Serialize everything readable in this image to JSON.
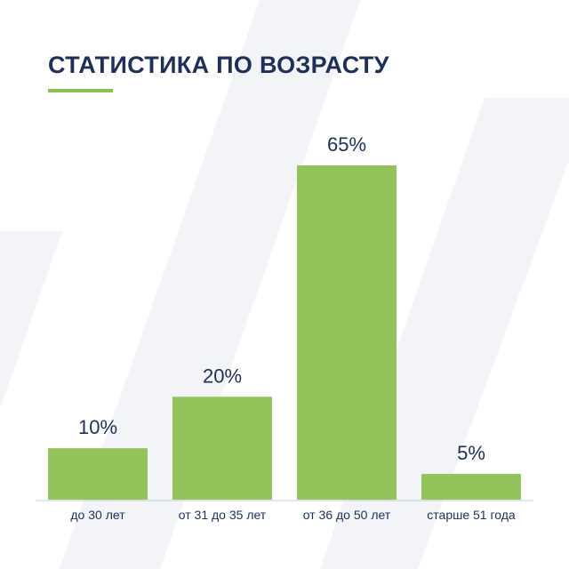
{
  "title": "СТАТИСТИКА ПО ВОЗРАСТУ",
  "colors": {
    "title": "#1f2f5c",
    "accent": "#8fc04f",
    "bar": "#95c35b",
    "baseline": "#c4ccd8",
    "label": "#1f2f5c",
    "background_shape": "#f2f4f8"
  },
  "chart_data": {
    "type": "bar",
    "categories": [
      "до 30 лет",
      "от 31 до 35 лет",
      "от 36 до 50 лет",
      "старше 51 года"
    ],
    "values": [
      10,
      20,
      65,
      5
    ],
    "value_labels": [
      "10%",
      "20%",
      "65%",
      "5%"
    ],
    "title": "СТАТИСТИКА ПО ВОЗРАСТУ",
    "xlabel": "",
    "ylabel": "",
    "ylim": [
      0,
      65
    ],
    "grid": false,
    "legend": "none"
  }
}
